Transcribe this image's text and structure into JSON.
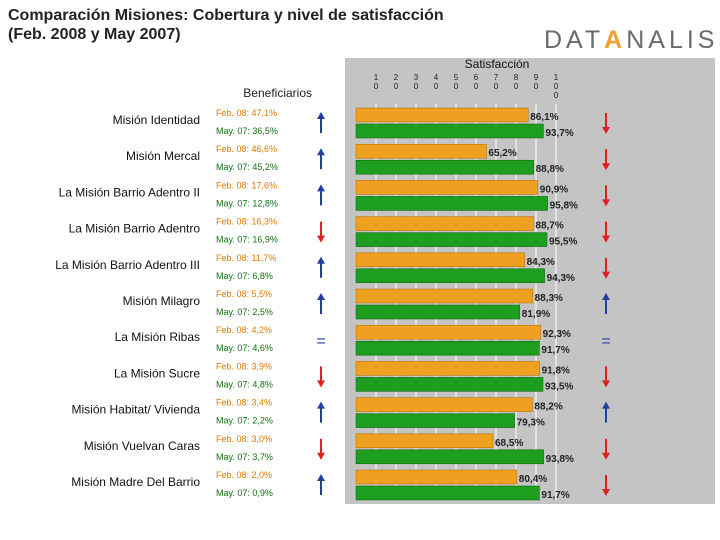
{
  "title_line1": "Comparación Misiones: Cobertura y nivel de satisfacción",
  "title_line2": "(Feb. 2008 y May 2007)",
  "logo": {
    "part1": "DAT",
    "accent": "A",
    "part2": "NALISIS"
  },
  "beneficiarios_label": "Beneficiarios",
  "satisfaccion_label": "Satisfacción",
  "colors": {
    "feb": "#f0a020",
    "may": "#1e9e1e",
    "arrow_up": "#2040a0",
    "arrow_down": "#e02020",
    "panel": "#c4c4c4"
  },
  "chart_data": {
    "type": "bar",
    "title": "Comparación Misiones: Cobertura y nivel de satisfacción",
    "subtitle": "(Feb. 2008 y May 2007)",
    "xlabel": "Satisfacción",
    "xlim": [
      0,
      100
    ],
    "xticks": [
      "10",
      "20",
      "30",
      "40",
      "50",
      "60",
      "70",
      "80",
      "90",
      "100"
    ],
    "grid": true,
    "categories": [
      "Misión Identidad",
      "Misión Mercal",
      "La Misión Barrio Adentro II",
      "La Misión Barrio Adentro",
      "La Misión Barrio Adentro III",
      "Misión Milagro",
      "La Misión Ribas",
      "La Misión Sucre",
      "Misión Habitat/ Vivienda",
      "Misión Vuelvan Caras",
      "Misión Madre Del Barrio"
    ],
    "series": [
      {
        "values": [
          86.1,
          65.2,
          90.9,
          88.7,
          84.3,
          88.3,
          92.3,
          91.8,
          88.2,
          68.5,
          80.4
        ]
      },
      {
        "values": [
          93.7,
          88.8,
          95.8,
          95.5,
          94.3,
          81.9,
          91.7,
          93.5,
          79.3,
          93.8,
          91.7
        ]
      }
    ],
    "sat_labels_feb": [
      "86,1%",
      "65,2%",
      "90,9%",
      "88,7%",
      "84,3%",
      "88,3%",
      "92,3%",
      "91,8%",
      "88,2%",
      "68,5%",
      "80,4%"
    ],
    "sat_labels_may": [
      "93,7%",
      "88,8%",
      "95,8%",
      "95,5%",
      "94,3%",
      "81,9%",
      "91,7%",
      "93,5%",
      "79,3%",
      "93,8%",
      "91,7%"
    ],
    "benef_feb": [
      "Feb. 08: 47,1%",
      "Feb. 08: 46,6%",
      "Feb. 08: 17,6%",
      "Feb. 08: 16,3%",
      "Feb. 08: 11,7%",
      "Feb. 08: 5,5%",
      "Feb. 08: 4,2%",
      "Feb. 08: 3,9%",
      "Feb. 08: 3,4%",
      "Feb. 08: 3,0%",
      "Feb. 08: 2,0%"
    ],
    "benef_may": [
      "May. 07: 36,5%",
      "May. 07: 45,2%",
      "May. 07: 12,8%",
      "May. 07: 16,9%",
      "May. 07: 6,8%",
      "May. 07: 2,5%",
      "May. 07: 4,6%",
      "May. 07: 4,8%",
      "May. 07: 2,2%",
      "May. 07: 3,7%",
      "May. 07: 0,9%"
    ],
    "benef_trend": [
      "up",
      "up",
      "up",
      "down",
      "up",
      "up",
      "equal",
      "down",
      "up",
      "down",
      "up"
    ],
    "sat_trend": [
      "down",
      "down",
      "down",
      "down",
      "down",
      "up",
      "equal",
      "down",
      "up",
      "down",
      "down"
    ]
  }
}
